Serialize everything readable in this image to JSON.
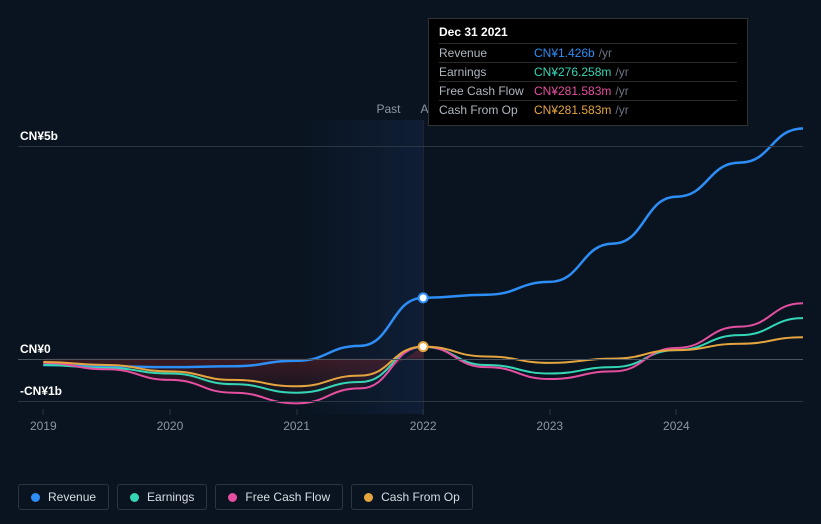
{
  "chart": {
    "background_color": "#0a1420",
    "grid_color": "#2a3642",
    "past_label": "Past",
    "forecast_label": "Analysts Forecasts",
    "divider_x": 2022,
    "xlim": [
      2018.8,
      2025
    ],
    "x_ticks": [
      2019,
      2020,
      2021,
      2022,
      2023,
      2024
    ],
    "ylim": [
      -1.3,
      5.6
    ],
    "y_ticks": [
      {
        "value": 5,
        "label": "CN¥5b"
      },
      {
        "value": 0,
        "label": "CN¥0"
      },
      {
        "value": -1,
        "label": "-CN¥1b"
      }
    ],
    "zero_line_strong": true,
    "marker_x": 2022,
    "series": [
      {
        "key": "revenue",
        "label": "Revenue",
        "color": "#2d8ef5",
        "line_width": 2.5,
        "data": [
          [
            2019,
            -0.15
          ],
          [
            2019.5,
            -0.18
          ],
          [
            2020,
            -0.2
          ],
          [
            2020.5,
            -0.18
          ],
          [
            2021,
            -0.05
          ],
          [
            2021.5,
            0.3
          ],
          [
            2022,
            1.426
          ],
          [
            2022.5,
            1.5
          ],
          [
            2023,
            1.8
          ],
          [
            2023.5,
            2.7
          ],
          [
            2024,
            3.8
          ],
          [
            2024.5,
            4.6
          ],
          [
            2025,
            5.4
          ]
        ]
      },
      {
        "key": "earnings",
        "label": "Earnings",
        "color": "#35d6b6",
        "line_width": 2,
        "data": [
          [
            2019,
            -0.15
          ],
          [
            2019.5,
            -0.22
          ],
          [
            2020,
            -0.35
          ],
          [
            2020.5,
            -0.6
          ],
          [
            2021,
            -0.8
          ],
          [
            2021.5,
            -0.55
          ],
          [
            2022,
            0.276
          ],
          [
            2022.5,
            -0.15
          ],
          [
            2023,
            -0.35
          ],
          [
            2023.5,
            -0.2
          ],
          [
            2024,
            0.2
          ],
          [
            2024.5,
            0.55
          ],
          [
            2025,
            0.95
          ]
        ]
      },
      {
        "key": "fcf",
        "label": "Free Cash Flow",
        "color": "#e54fa0",
        "line_width": 2,
        "data": [
          [
            2019,
            -0.1
          ],
          [
            2019.5,
            -0.25
          ],
          [
            2020,
            -0.5
          ],
          [
            2020.5,
            -0.8
          ],
          [
            2021,
            -1.05
          ],
          [
            2021.5,
            -0.7
          ],
          [
            2022,
            0.282
          ],
          [
            2022.5,
            -0.2
          ],
          [
            2023,
            -0.48
          ],
          [
            2023.5,
            -0.3
          ],
          [
            2024,
            0.25
          ],
          [
            2024.5,
            0.75
          ],
          [
            2025,
            1.3
          ]
        ]
      },
      {
        "key": "cfo",
        "label": "Cash From Op",
        "color": "#e5a53e",
        "line_width": 2,
        "data": [
          [
            2019,
            -0.08
          ],
          [
            2019.5,
            -0.15
          ],
          [
            2020,
            -0.3
          ],
          [
            2020.5,
            -0.5
          ],
          [
            2021,
            -0.65
          ],
          [
            2021.5,
            -0.4
          ],
          [
            2022,
            0.282
          ],
          [
            2022.5,
            0.05
          ],
          [
            2023,
            -0.1
          ],
          [
            2023.5,
            0.0
          ],
          [
            2024,
            0.2
          ],
          [
            2024.5,
            0.35
          ],
          [
            2025,
            0.5
          ]
        ]
      }
    ],
    "fill_band": {
      "from": "fcf",
      "colors": [
        "rgba(180,40,40,0.35)",
        "rgba(180,40,40,0.0)"
      ],
      "x_end": 2022
    }
  },
  "tooltip": {
    "date": "Dec 31 2021",
    "rows": [
      {
        "label": "Revenue",
        "value": "CN¥1.426b",
        "suffix": "/yr",
        "color": "#2d8ef5"
      },
      {
        "label": "Earnings",
        "value": "CN¥276.258m",
        "suffix": "/yr",
        "color": "#35d6b6"
      },
      {
        "label": "Free Cash Flow",
        "value": "CN¥281.583m",
        "suffix": "/yr",
        "color": "#e54fa0"
      },
      {
        "label": "Cash From Op",
        "value": "CN¥281.583m",
        "suffix": "/yr",
        "color": "#e5a53e"
      }
    ]
  },
  "legend": [
    {
      "label": "Revenue",
      "color": "#2d8ef5"
    },
    {
      "label": "Earnings",
      "color": "#35d6b6"
    },
    {
      "label": "Free Cash Flow",
      "color": "#e54fa0"
    },
    {
      "label": "Cash From Op",
      "color": "#e5a53e"
    }
  ]
}
